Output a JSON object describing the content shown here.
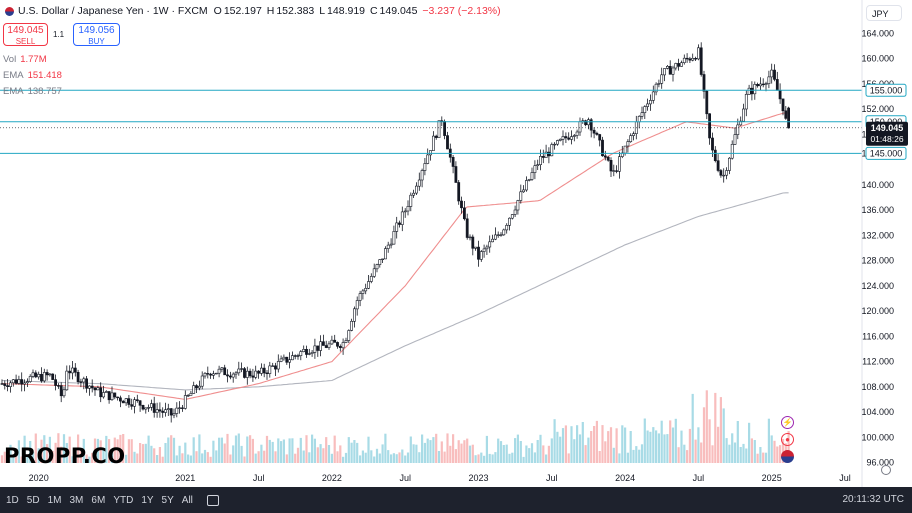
{
  "header": {
    "symbol_title": "U.S. Dollar / Japanese Yen · 1W · FXCM",
    "ohlc": {
      "open_label": "O",
      "open": "152.197",
      "high_label": "H",
      "high": "152.383",
      "low_label": "L",
      "low": "148.919",
      "close_label": "C",
      "close": "149.045",
      "change": "−3.237 (−2.13%)"
    }
  },
  "trade": {
    "sell_price": "149.045",
    "sell_label": "SELL",
    "spread": "1.1",
    "buy_price": "149.056",
    "buy_label": "BUY"
  },
  "indicators": [
    {
      "name": "Vol",
      "value": "1.77M",
      "color": "#f23645"
    },
    {
      "name": "EMA",
      "value": "151.418",
      "color": "#f23645"
    },
    {
      "name": "EMA",
      "value": "138.757",
      "color": "#787b86"
    }
  ],
  "currency_selector": "JPY",
  "price_axis": {
    "ticks": [
      "164.000",
      "160.000",
      "156.000",
      "152.000",
      "148.000",
      "145.000",
      "140.000",
      "136.000",
      "132.000",
      "128.000",
      "124.000",
      "120.000",
      "116.000",
      "112.000",
      "108.000",
      "104.000",
      "100.000",
      "96.000"
    ],
    "level_labels": [
      {
        "text": "155.000",
        "value": 155.0
      },
      {
        "text": "150.000",
        "value": 150.0
      },
      {
        "text": "145.000",
        "value": 145.0
      }
    ],
    "current_price": "149.045",
    "countdown": "01:48:26"
  },
  "time_axis": {
    "ticks": [
      "2020",
      "2021",
      "Jul",
      "2022",
      "Jul",
      "2023",
      "Jul",
      "2024",
      "Jul",
      "2025",
      "Jul"
    ]
  },
  "bottom_bar": {
    "ranges": [
      "1D",
      "5D",
      "1M",
      "3M",
      "6M",
      "YTD",
      "1Y",
      "5Y",
      "All"
    ],
    "clock": "20:11:32 UTC"
  },
  "watermark": "PROPP.CO",
  "colors": {
    "up": "#131722",
    "down": "#131722",
    "ema_fast": "#ef8e8e",
    "ema_slow": "#b2b5be",
    "levels": "#22a7c3",
    "volume": "#9fd7e3",
    "volume_down": "#f7b6b6"
  },
  "chart_data": {
    "type": "candlestick",
    "pair": "USD/JPY",
    "timeframe": "1W",
    "ylim": [
      96,
      166
    ],
    "horizontal_levels": [
      155.0,
      150.0,
      145.0
    ],
    "close_path": [
      {
        "x": "2019-10",
        "y": 108.5
      },
      {
        "x": "2019-12",
        "y": 109.3
      },
      {
        "x": "2020-02",
        "y": 109.8
      },
      {
        "x": "2020-03",
        "y": 106.0
      },
      {
        "x": "2020-03",
        "y": 111.0
      },
      {
        "x": "2020-06",
        "y": 107.0
      },
      {
        "x": "2020-09",
        "y": 105.5
      },
      {
        "x": "2020-12",
        "y": 103.5
      },
      {
        "x": "2021-03",
        "y": 110.5
      },
      {
        "x": "2021-07",
        "y": 110.0
      },
      {
        "x": "2021-11",
        "y": 114.0
      },
      {
        "x": "2022-02",
        "y": 115.0
      },
      {
        "x": "2022-03",
        "y": 121.5
      },
      {
        "x": "2022-05",
        "y": 128.0
      },
      {
        "x": "2022-07",
        "y": 136.0
      },
      {
        "x": "2022-10",
        "y": 150.5
      },
      {
        "x": "2022-12",
        "y": 132.5
      },
      {
        "x": "2023-01",
        "y": 128.5
      },
      {
        "x": "2023-03",
        "y": 133.0
      },
      {
        "x": "2023-06",
        "y": 144.0
      },
      {
        "x": "2023-10",
        "y": 150.5
      },
      {
        "x": "2023-12",
        "y": 141.5
      },
      {
        "x": "2024-02",
        "y": 150.0
      },
      {
        "x": "2024-04",
        "y": 157.5
      },
      {
        "x": "2024-07",
        "y": 161.0
      },
      {
        "x": "2024-08",
        "y": 146.0
      },
      {
        "x": "2024-09",
        "y": 141.0
      },
      {
        "x": "2024-11",
        "y": 154.5
      },
      {
        "x": "2025-01",
        "y": 157.5
      },
      {
        "x": "2025-02",
        "y": 152.0
      },
      {
        "x": "2025-02",
        "y": 149.045
      }
    ],
    "ema_fast_path": [
      {
        "x": "2019-10",
        "y": 108.5
      },
      {
        "x": "2020-06",
        "y": 108.0
      },
      {
        "x": "2021-01",
        "y": 106.0
      },
      {
        "x": "2021-07",
        "y": 108.5
      },
      {
        "x": "2022-01",
        "y": 112.0
      },
      {
        "x": "2022-07",
        "y": 124.0
      },
      {
        "x": "2022-12",
        "y": 136.5
      },
      {
        "x": "2023-06",
        "y": 137.5
      },
      {
        "x": "2023-12",
        "y": 145.0
      },
      {
        "x": "2024-06",
        "y": 150.0
      },
      {
        "x": "2024-10",
        "y": 149.0
      },
      {
        "x": "2025-02",
        "y": 151.418
      }
    ],
    "ema_slow_path": [
      {
        "x": "2019-10",
        "y": 109.0
      },
      {
        "x": "2020-06",
        "y": 108.5
      },
      {
        "x": "2021-01",
        "y": 107.5
      },
      {
        "x": "2021-07",
        "y": 108.0
      },
      {
        "x": "2022-01",
        "y": 109.0
      },
      {
        "x": "2022-07",
        "y": 114.5
      },
      {
        "x": "2023-01",
        "y": 119.5
      },
      {
        "x": "2023-07",
        "y": 125.0
      },
      {
        "x": "2024-01",
        "y": 130.5
      },
      {
        "x": "2024-07",
        "y": 135.0
      },
      {
        "x": "2025-02",
        "y": 138.757
      }
    ],
    "volume_last": "1.77M"
  }
}
